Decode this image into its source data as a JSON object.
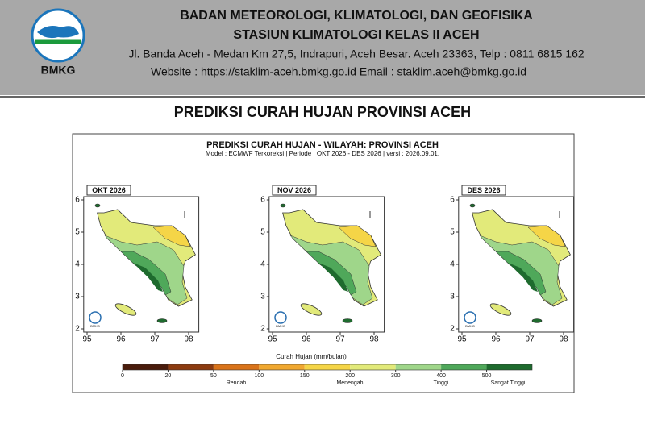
{
  "header": {
    "logo_text": "BMKG",
    "agency": "BADAN METEOROLOGI, KLIMATOLOGI, DAN GEOFISIKA",
    "station": "STASIUN KLIMATOLOGI KELAS II ACEH",
    "address": "Jl. Banda Aceh - Medan Km 27,5, Indrapuri, Aceh Besar. Aceh 23363, Telp : 0811 6815 162",
    "contact": "Website : https://staklim-aceh.bmkg.go.id Email : staklim.aceh@bmkg.go.id"
  },
  "page_title": "PREDIKSI CURAH HUJAN PROVINSI ACEH",
  "figure": {
    "title": "PREDIKSI CURAH HUJAN - WILAYAH: PROVINSI ACEH",
    "subtitle": "Model : ECMWF Terkoreksi   |   Periode : OKT 2026 - DES 2026   |   versi : 2026.09.01.",
    "maps": [
      {
        "label": "OKT 2026"
      },
      {
        "label": "NOV 2026"
      },
      {
        "label": "DES 2026"
      }
    ],
    "map_logo": "BMKG",
    "xlim": [
      94.9,
      98.3
    ],
    "ylim": [
      1.9,
      6.1
    ],
    "xticks": [
      95,
      96,
      97,
      98
    ],
    "yticks": [
      2,
      3,
      4,
      5,
      6
    ],
    "colorbar": {
      "label": "Curah Hujan (mm/bulan)",
      "ticks": [
        0,
        20,
        50,
        100,
        150,
        200,
        300,
        400,
        500
      ],
      "colors": [
        "#4a1c0c",
        "#8c3b0f",
        "#d9731a",
        "#f0a830",
        "#f5d547",
        "#e2ea7a",
        "#9fd68a",
        "#4fa85a",
        "#1e6b2e"
      ],
      "categories": [
        "Rendah",
        "Menengah",
        "Tinggi",
        "Sangat Tinggi"
      ]
    }
  }
}
